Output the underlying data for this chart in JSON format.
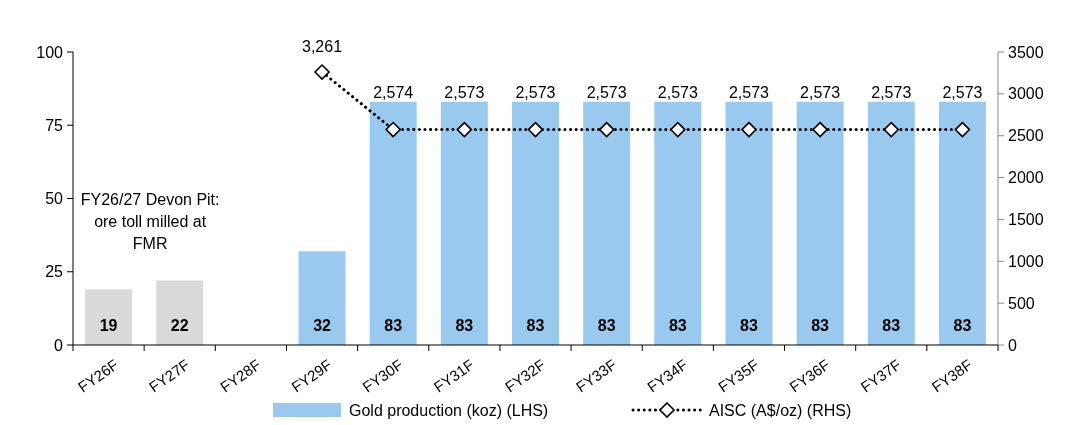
{
  "chart_data": {
    "type": "bar",
    "categories": [
      "FY26F",
      "FY27F",
      "FY28F",
      "FY29F",
      "FY30F",
      "FY31F",
      "FY32F",
      "FY33F",
      "FY34F",
      "FY35F",
      "FY36F",
      "FY37F",
      "FY38F"
    ],
    "series": [
      {
        "name": "Gold production (koz) (LHS)",
        "color": "#99c9ee",
        "colors": [
          "#d9d9d9",
          "#d9d9d9",
          null,
          "#99c9ee",
          "#99c9ee",
          "#99c9ee",
          "#99c9ee",
          "#99c9ee",
          "#99c9ee",
          "#99c9ee",
          "#99c9ee",
          "#99c9ee",
          "#99c9ee"
        ],
        "values": [
          19,
          22,
          null,
          32,
          83,
          83,
          83,
          83,
          83,
          83,
          83,
          83,
          83
        ],
        "value_labels": [
          "19",
          "22",
          null,
          "32",
          "83",
          "83",
          "83",
          "83",
          "83",
          "83",
          "83",
          "83",
          "83"
        ]
      },
      {
        "name": "AISC (A$/oz) (RHS)",
        "type": "line",
        "axis": "y2",
        "color": "#000000",
        "marker": "diamond",
        "line_style": "dotted",
        "values": [
          null,
          null,
          null,
          3261,
          2574,
          2573,
          2573,
          2573,
          2573,
          2573,
          2573,
          2573,
          2573
        ],
        "value_labels": [
          null,
          null,
          null,
          "3,261",
          "2,574",
          "2,573",
          "2,573",
          "2,573",
          "2,573",
          "2,573",
          "2,573",
          "2,573",
          "2,573"
        ]
      }
    ],
    "ylim": [
      0,
      100
    ],
    "yticks": [
      0,
      25,
      50,
      75,
      100
    ],
    "y2lim": [
      0,
      3500
    ],
    "y2ticks": [
      0,
      500,
      1000,
      1500,
      2000,
      2500,
      3000,
      3500
    ],
    "annotations": [
      "FY26/27 Devon Pit: ore toll milled at FMR"
    ],
    "legend": "bottom",
    "grid": false
  }
}
